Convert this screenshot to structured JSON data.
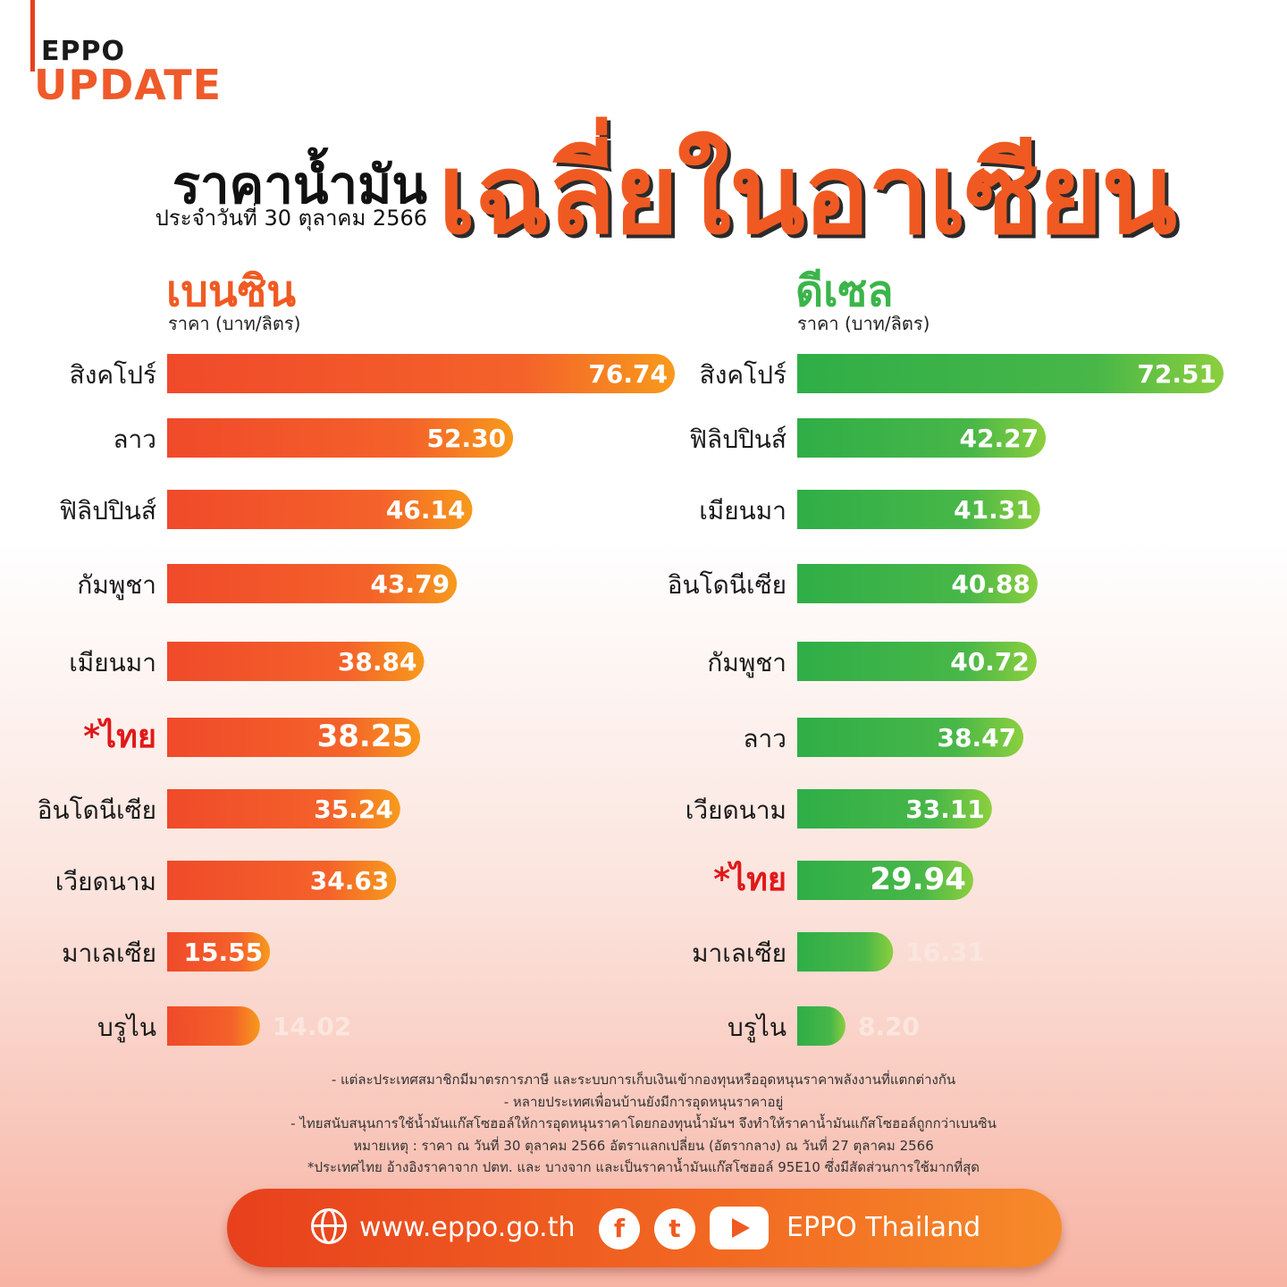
{
  "logo": {
    "line1": "EPPO",
    "line2": "UPDATE"
  },
  "header": {
    "title_small": "ราคาน้ำมัน",
    "title_big": "เฉลี่ยในอาเซียน",
    "date": "ประจำวันที่ 30 ตุลาคม 2566"
  },
  "colors": {
    "orange": "#f15a24",
    "green": "#3bb54a",
    "thai_red": "#e0191a"
  },
  "chart_data": [
    {
      "type": "bar",
      "title": "เบนซิน",
      "ylabel": "ราคา (บาท/ลิตร)",
      "highlight": "*ไทย",
      "categories": [
        "สิงคโปร์",
        "ลาว",
        "ฟิลิปปินส์",
        "กัมพูชา",
        "เมียนมา",
        "*ไทย",
        "อินโดนีเซีย",
        "เวียดนาม",
        "มาเลเซีย",
        "บรูไน"
      ],
      "values": [
        76.74,
        52.3,
        46.14,
        43.79,
        38.84,
        38.25,
        35.24,
        34.63,
        15.55,
        14.02
      ],
      "labels": [
        "76.74",
        "52.30",
        "46.14",
        "43.79",
        "38.84",
        "38.25",
        "35.24",
        "34.63",
        "15.55",
        "14.02"
      ]
    },
    {
      "type": "bar",
      "title": "ดีเซล",
      "ylabel": "ราคา (บาท/ลิตร)",
      "highlight": "*ไทย",
      "categories": [
        "สิงคโปร์",
        "ฟิลิปปินส์",
        "เมียนมา",
        "อินโดนีเซีย",
        "กัมพูชา",
        "ลาว",
        "เวียดนาม",
        "*ไทย",
        "มาเลเซีย",
        "บรูไน"
      ],
      "values": [
        72.51,
        42.27,
        41.31,
        40.88,
        40.72,
        38.47,
        33.11,
        29.94,
        16.31,
        8.2
      ],
      "labels": [
        "72.51",
        "42.27",
        "41.31",
        "40.88",
        "40.72",
        "38.47",
        "33.11",
        "29.94",
        "16.31",
        "8.20"
      ]
    }
  ],
  "notes": [
    "- แต่ละประเทศสมาชิกมีมาตรการภาษี และระบบการเก็บเงินเข้ากองทุนหรืออุดหนุนราคาพลังงานที่แตกต่างกัน",
    "- หลายประเทศเพื่อนบ้านยังมีการอุดหนุนราคาอยู่",
    "- ไทยสนับสนุนการใช้น้ำมันแก๊สโซฮอล์ให้การอุดหนุนราคาโดยกองทุนน้ำมันฯ จึงทำให้ราคาน้ำมันแก๊สโซฮอล์ถูกกว่าเบนซิน",
    "หมายเหตุ : ราคา ณ วันที่ 30 ตุลาคม 2566 อัตราแลกเปลี่ยน (อัตรากลาง) ณ วันที่ 27 ตุลาคม 2566",
    "*ประเทศไทย อ้างอิงราคาจาก ปตท. และ บางจาก และเป็นราคาน้ำมันแก๊สโซฮอล์ 95E10 ซึ่งมีสัดส่วนการใช้มากที่สุด"
  ],
  "footer": {
    "website": "www.eppo.go.th",
    "facebook_icon": "f",
    "twitter_icon": "t",
    "brand": "EPPO Thailand"
  }
}
